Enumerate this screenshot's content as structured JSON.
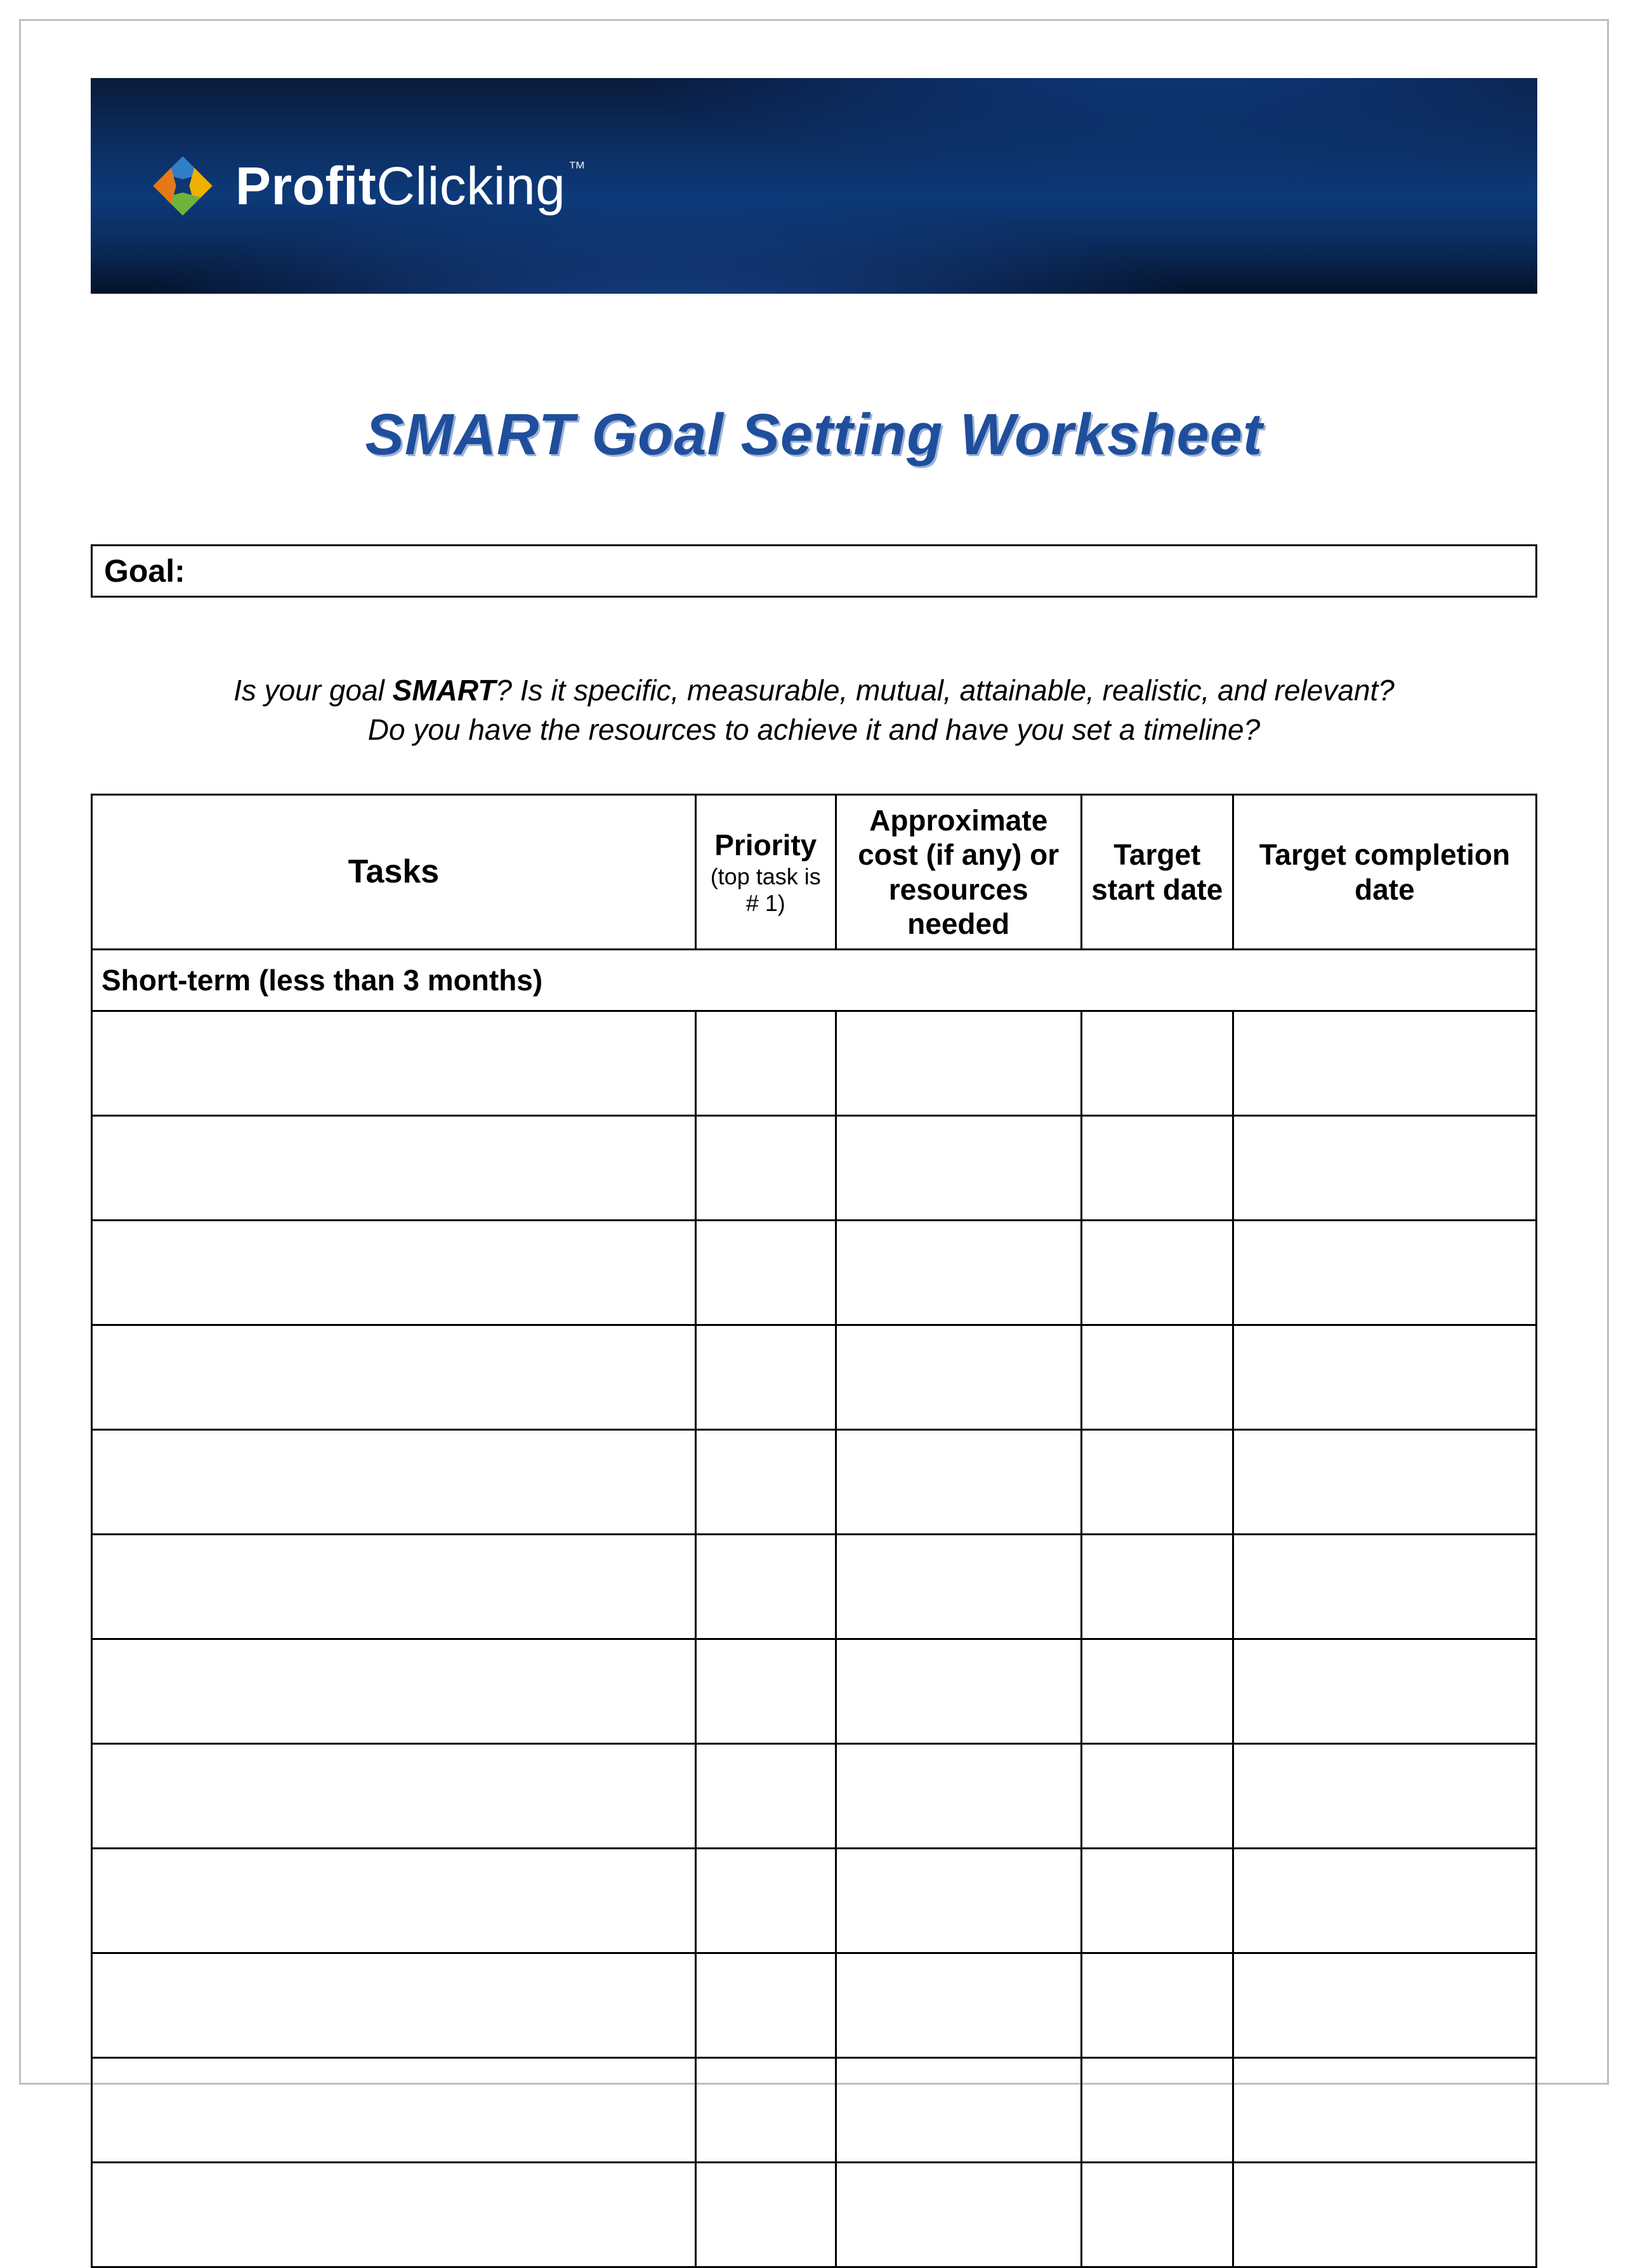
{
  "brand": {
    "name_bold": "Profit",
    "name_light": "Clicking",
    "tm": "™",
    "text_color": "#ffffff",
    "banner_gradient_top": "#0a1a3a",
    "banner_gradient_mid": "#0d3a7a",
    "banner_gradient_bottom": "#04122a",
    "logo_colors": {
      "top_blue": "#2f80c9",
      "right_yellow": "#f0b000",
      "bottom_green": "#6fb33a",
      "left_orange": "#e67817"
    }
  },
  "title": {
    "text": "SMART Goal Setting Worksheet",
    "color": "#1f4e9c",
    "shadow_color": "#9db4d6"
  },
  "goal": {
    "label": "Goal:"
  },
  "intro": {
    "line1_prefix": "Is your goal ",
    "line1_smart": "SMART",
    "line1_suffix": "?  Is it specific, measurable, mutual, attainable, realistic, and relevant?",
    "line2": "Do you have the resources to achieve it and have you set a timeline?"
  },
  "table": {
    "border_color": "#000000",
    "columns": {
      "tasks": "Tasks",
      "priority": "Priority",
      "priority_sub": "(top task is # 1)",
      "cost": "Approximate cost (if any) or resources needed",
      "start": "Target start date",
      "end": "Target completion date"
    },
    "section_short_term": "Short-term (less than 3 months)",
    "blank_rows": 12
  }
}
